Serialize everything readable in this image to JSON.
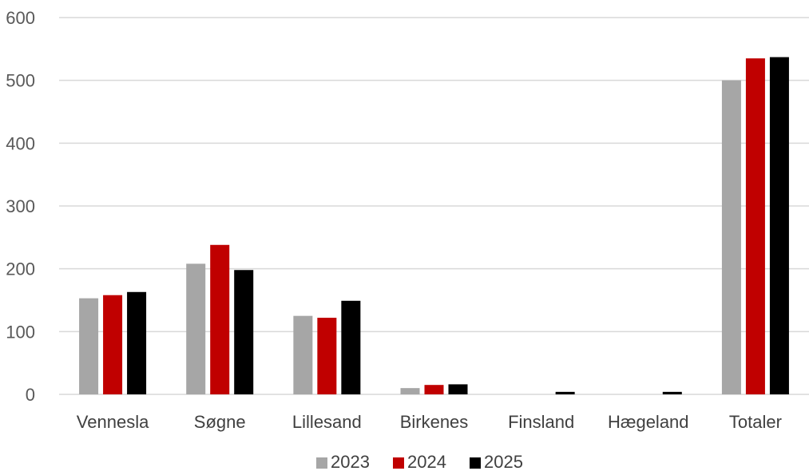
{
  "chart_data": {
    "type": "bar",
    "title": "",
    "xlabel": "",
    "ylabel": "",
    "categories": [
      "Vennesla",
      "Søgne",
      "Lillesand",
      "Birkenes",
      "Finsland",
      "Hægeland",
      "Totaler"
    ],
    "series": [
      {
        "name": "2023",
        "color": "#a6a6a6",
        "values": [
          153,
          208,
          125,
          10,
          0,
          0,
          500
        ]
      },
      {
        "name": "2024",
        "color": "#c00000",
        "values": [
          158,
          238,
          122,
          15,
          0,
          0,
          535
        ]
      },
      {
        "name": "2025",
        "color": "#000000",
        "values": [
          163,
          198,
          149,
          16,
          4,
          4,
          537
        ]
      }
    ],
    "ylim": [
      0,
      600
    ],
    "yticks": [
      0,
      100,
      200,
      300,
      400,
      500,
      600
    ],
    "grid": true,
    "legend_position": "bottom-center"
  }
}
